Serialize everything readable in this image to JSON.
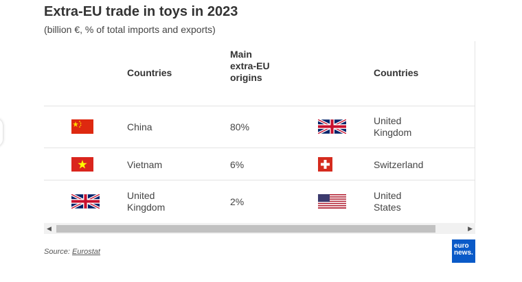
{
  "title": "Extra-EU trade in toys in 2023",
  "subtitle": "(billion €, % of total imports and exports)",
  "table": {
    "col_countries_1": "Countries",
    "col_main_extra_eu_origins": "Main extra-EU origins",
    "col_countries_2": "Countries",
    "rows": [
      {
        "origin_flag": "china-flag",
        "origin": "China",
        "share": "80%",
        "dest_flag": "uk-flag",
        "destination": "United Kingdom"
      },
      {
        "origin_flag": "vietnam-flag",
        "origin": "Vietnam",
        "share": "6%",
        "dest_flag": "switzerland-flag",
        "destination": "Switzerland"
      },
      {
        "origin_flag": "uk-flag",
        "origin": "United Kingdom",
        "share": "2%",
        "dest_flag": "usa-flag",
        "destination": "United States"
      }
    ]
  },
  "source": {
    "label": "Source:",
    "link": "Eurostat"
  },
  "logo": {
    "line1": "euro",
    "line2": "news."
  },
  "colors": {
    "logo_blue": "#0a5ac8",
    "china_red": "#de2910",
    "uk_blue": "#012169",
    "swiss_red": "#d52b1e"
  }
}
